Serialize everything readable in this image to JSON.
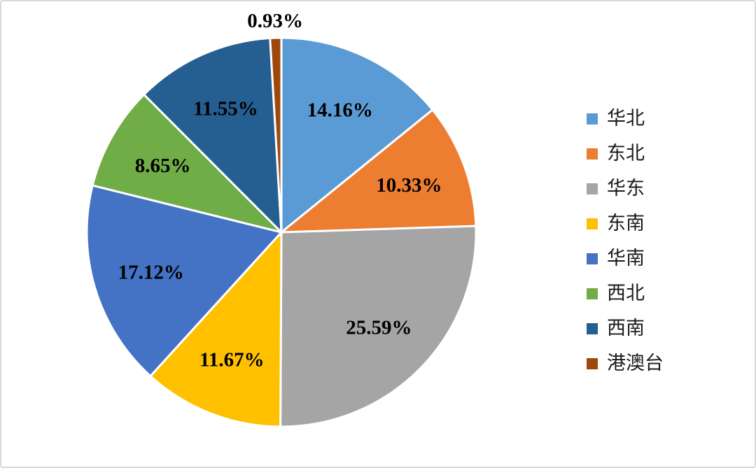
{
  "canvas": {
    "background_color": "#FFFFFF",
    "border_color": "#D9D9D9"
  },
  "chart_data": {
    "type": "pie",
    "title": "",
    "legend_position": "right",
    "start_angle_deg": 0,
    "direction": "clockwise",
    "categories": [
      "华北",
      "东北",
      "华东",
      "东南",
      "华南",
      "西北",
      "西南",
      "港澳台"
    ],
    "values": [
      14.16,
      10.33,
      25.59,
      11.67,
      17.12,
      8.65,
      11.55,
      0.93
    ],
    "data_labels": [
      "14.16%",
      "10.33%",
      "25.59%",
      "11.67%",
      "17.12%",
      "8.65%",
      "11.55%",
      "0.93%"
    ],
    "colors": [
      "#5B9BD5",
      "#ED7D31",
      "#A5A5A5",
      "#FFC000",
      "#4472C4",
      "#70AD47",
      "#255E91",
      "#9E480E"
    ],
    "slice_border_color": "#FFFFFF",
    "data_label_color": "#000000",
    "small_slice_label_outside_threshold_pct": 2
  }
}
